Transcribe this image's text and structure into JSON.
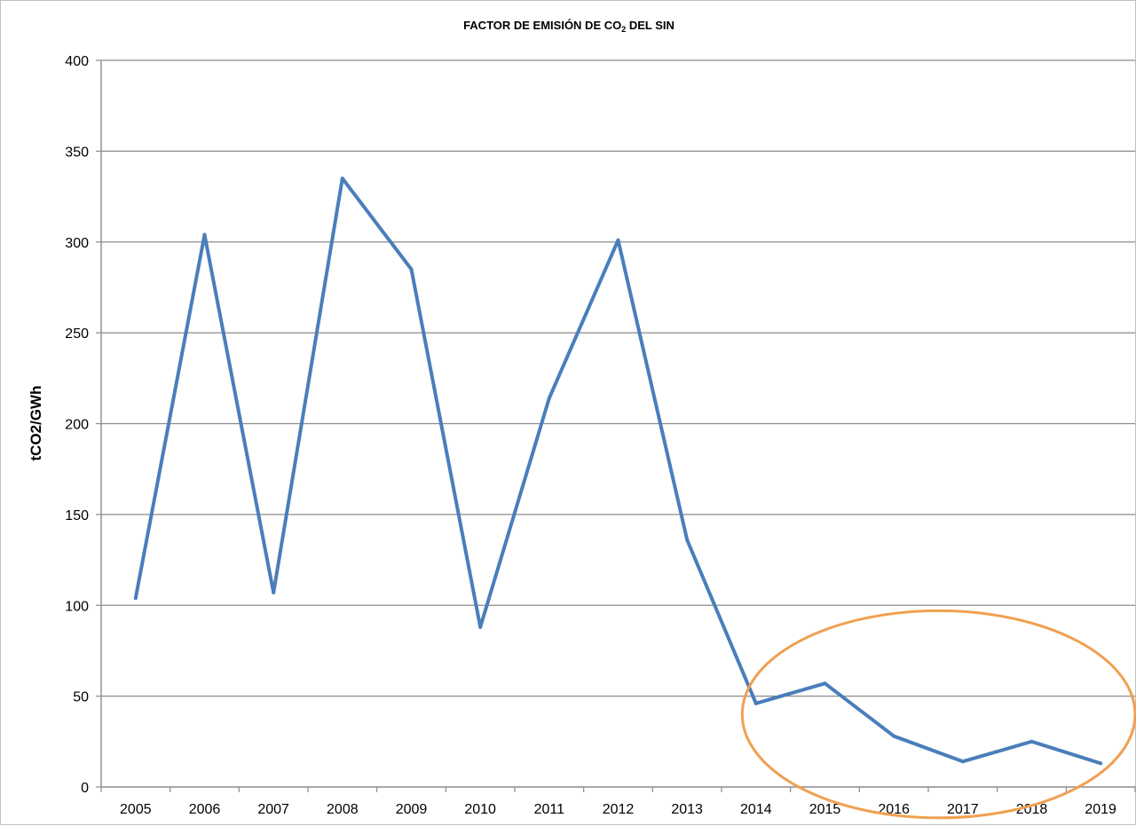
{
  "chart_data": {
    "type": "line",
    "title": {
      "pre": "FACTOR DE EMISIÓN DE CO",
      "sub": "2",
      "post": " DEL SIN"
    },
    "xlabel": "",
    "ylabel": "tCO2/GWh",
    "categories": [
      "2005",
      "2006",
      "2007",
      "2008",
      "2009",
      "2010",
      "2011",
      "2012",
      "2013",
      "2014",
      "2015",
      "2016",
      "2017",
      "2018",
      "2019"
    ],
    "series": [
      {
        "values": [
          104,
          304,
          107,
          335,
          285,
          88,
          214,
          301,
          136,
          46,
          57,
          28,
          14,
          25,
          13
        ],
        "color": "#4a7ebb"
      }
    ],
    "ylim": [
      0,
      400
    ],
    "yticks": [
      0,
      50,
      100,
      150,
      200,
      250,
      300,
      350,
      400
    ],
    "grid": true,
    "legend": "none",
    "annotation": {
      "shape": "ellipse",
      "color": "#f0a050",
      "center_x": 2016.65,
      "center_y": 40,
      "radius_x_years": 2.85,
      "radius_y": 57
    }
  }
}
